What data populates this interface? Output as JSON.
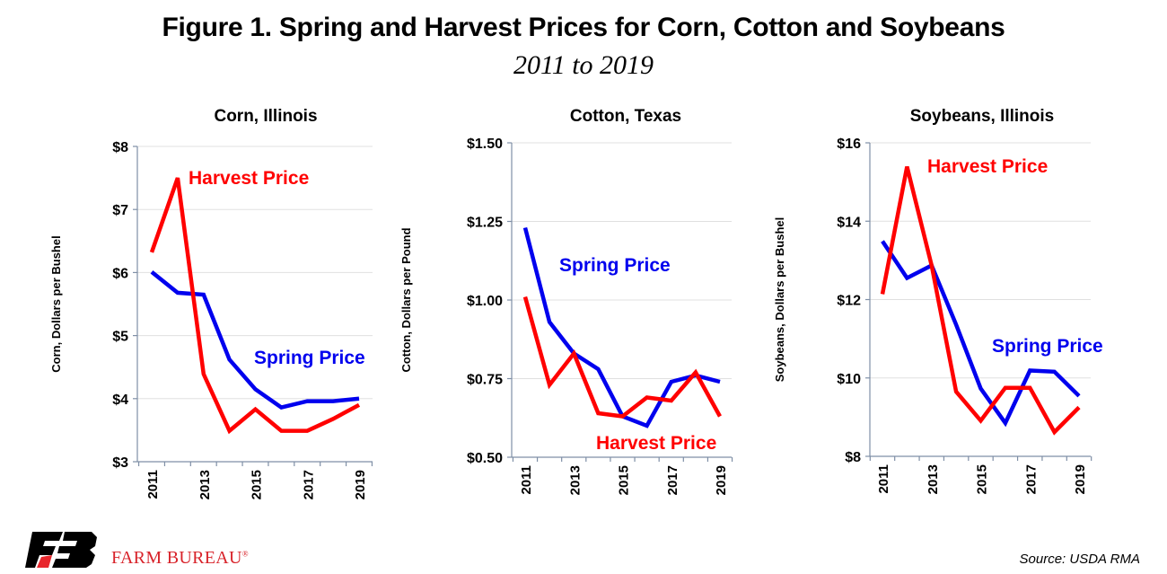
{
  "title": "Figure 1. Spring and Harvest Prices for Corn, Cotton and Soybeans",
  "subtitle": "2011 to 2019",
  "source": "Source: USDA RMA",
  "brand": {
    "name": "FARM BUREAU",
    "mark": "®",
    "logo_text": "FB"
  },
  "colors": {
    "spring": "#0000ee",
    "harvest": "#ff0000",
    "grid": "#e0e0e0",
    "axis": "#7f8fa6",
    "logo_red": "#e8262c"
  },
  "chart_data": [
    {
      "type": "line",
      "title": "Corn, Illinois",
      "ylabel": "Corn, Dollars per Bushel",
      "x": [
        2011,
        2012,
        2013,
        2014,
        2015,
        2016,
        2017,
        2018,
        2019
      ],
      "x_tick_labels": [
        "2011",
        "2013",
        "2015",
        "2017",
        "2019"
      ],
      "ylim": [
        3,
        8
      ],
      "y_ticks": [
        3,
        4,
        5,
        6,
        7,
        8
      ],
      "y_tick_labels": [
        "$3",
        "$4",
        "$5",
        "$6",
        "$7",
        "$8"
      ],
      "grid": true,
      "series": [
        {
          "name": "Spring Price",
          "color": "#0000ee",
          "values": [
            6.01,
            5.68,
            5.65,
            4.62,
            4.15,
            3.86,
            3.96,
            3.96,
            4.0
          ]
        },
        {
          "name": "Harvest Price",
          "color": "#ff0000",
          "values": [
            6.32,
            7.5,
            4.39,
            3.49,
            3.83,
            3.49,
            3.49,
            3.68,
            3.9
          ]
        }
      ]
    },
    {
      "type": "line",
      "title": "Cotton, Texas",
      "ylabel": "Cotton, Dollars per Pound",
      "x": [
        2011,
        2012,
        2013,
        2014,
        2015,
        2016,
        2017,
        2018,
        2019
      ],
      "x_tick_labels": [
        "2011",
        "2013",
        "2015",
        "2017",
        "2019"
      ],
      "ylim": [
        0.5,
        1.5
      ],
      "y_ticks": [
        0.5,
        0.75,
        1.0,
        1.25,
        1.5
      ],
      "y_tick_labels": [
        "$0.50",
        "$0.75",
        "$1.00",
        "$1.25",
        "$1.50"
      ],
      "grid": true,
      "series": [
        {
          "name": "Spring Price",
          "color": "#0000ee",
          "values": [
            1.23,
            0.93,
            0.83,
            0.78,
            0.63,
            0.6,
            0.74,
            0.76,
            0.74
          ]
        },
        {
          "name": "Harvest Price",
          "color": "#ff0000",
          "values": [
            1.01,
            0.73,
            0.83,
            0.64,
            0.63,
            0.69,
            0.68,
            0.77,
            0.63
          ]
        }
      ]
    },
    {
      "type": "line",
      "title": "Soybeans, Illinois",
      "ylabel": "Soybeans, Dollars per Bushel",
      "x": [
        2011,
        2012,
        2013,
        2014,
        2015,
        2016,
        2017,
        2018,
        2019
      ],
      "x_tick_labels": [
        "2011",
        "2013",
        "2015",
        "2017",
        "2019"
      ],
      "ylim": [
        8,
        16
      ],
      "y_ticks": [
        8,
        10,
        12,
        14,
        16
      ],
      "y_tick_labels": [
        "$8",
        "$10",
        "$12",
        "$14",
        "$16"
      ],
      "grid": true,
      "series": [
        {
          "name": "Spring Price",
          "color": "#0000ee",
          "values": [
            13.49,
            12.55,
            12.87,
            11.36,
            9.73,
            8.85,
            10.19,
            10.16,
            9.54
          ]
        },
        {
          "name": "Harvest Price",
          "color": "#ff0000",
          "values": [
            12.14,
            15.39,
            12.87,
            9.65,
            8.91,
            9.75,
            9.75,
            8.62,
            9.25
          ]
        }
      ]
    }
  ]
}
